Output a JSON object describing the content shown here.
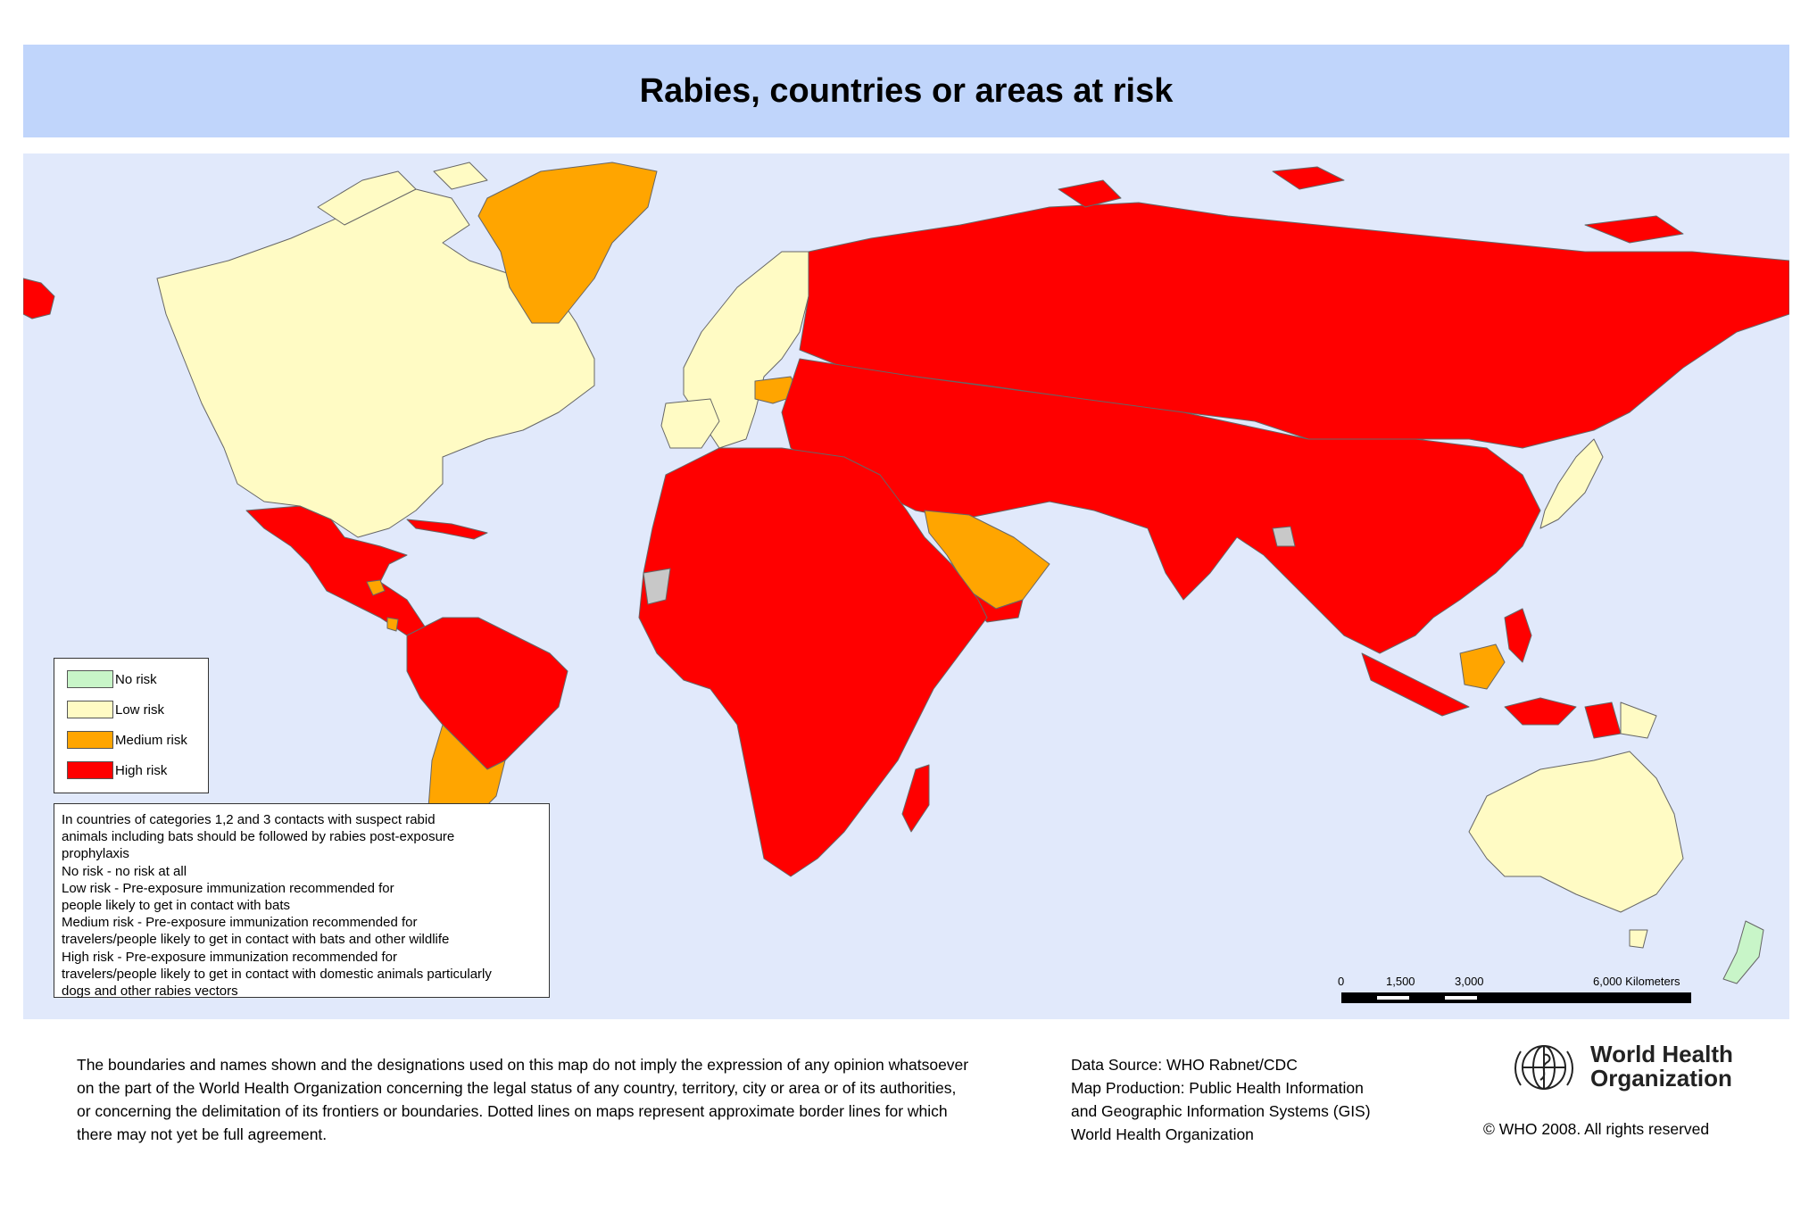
{
  "title": "Rabies, countries or areas at risk",
  "legend": {
    "items": [
      {
        "label": "No risk",
        "color": "#c8f5c8"
      },
      {
        "label": "Low risk",
        "color": "#fffbc4"
      },
      {
        "label": "Medium risk",
        "color": "#ffa500"
      },
      {
        "label": "High risk",
        "color": "#ff0000"
      }
    ]
  },
  "notes": {
    "lines": [
      "In countries of categories 1,2 and 3 contacts with suspect rabid",
      "animals including bats should be followed by rabies post-exposure",
      "prophylaxis",
      "No risk  - no risk at all",
      "Low risk - Pre-exposure immunization recommended for",
      "people likely to get in contact with bats",
      "Medium risk - Pre-exposure immunization recommended for",
      "travelers/people likely to get in contact with bats and other wildlife",
      "High risk -  Pre-exposure immunization recommended for",
      "travelers/people likely to get in contact with domestic animals particularly",
      "dogs and other rabies vectors"
    ]
  },
  "scale_bar": {
    "labels": [
      "0",
      "1,500",
      "3,000",
      "6,000 Kilometers"
    ]
  },
  "disclaimer": {
    "lines": [
      "The boundaries and names shown and the designations used on this map do not imply the expression of any opinion whatsoever",
      "on the part of the World Health Organization concerning the legal status of any country, territory, city or area or of its authorities,",
      "or concerning the delimitation of its frontiers or boundaries.  Dotted lines on maps represent approximate border lines for which",
      "there may not yet be full agreement."
    ]
  },
  "credits": {
    "lines": [
      "Data Source: WHO Rabnet/CDC",
      "Map Production: Public Health Information",
      "and Geographic Information Systems (GIS)",
      "World Health Organization"
    ]
  },
  "logo": {
    "line1": "World Health",
    "line2": "Organization",
    "icon": "who-emblem-icon"
  },
  "copyright": "© WHO 2008. All rights reserved",
  "colors": {
    "ocean": "#e1e9fb",
    "title_bg": "#c0d5fb",
    "border": "#555555",
    "no_data": "#c8c8c8"
  }
}
